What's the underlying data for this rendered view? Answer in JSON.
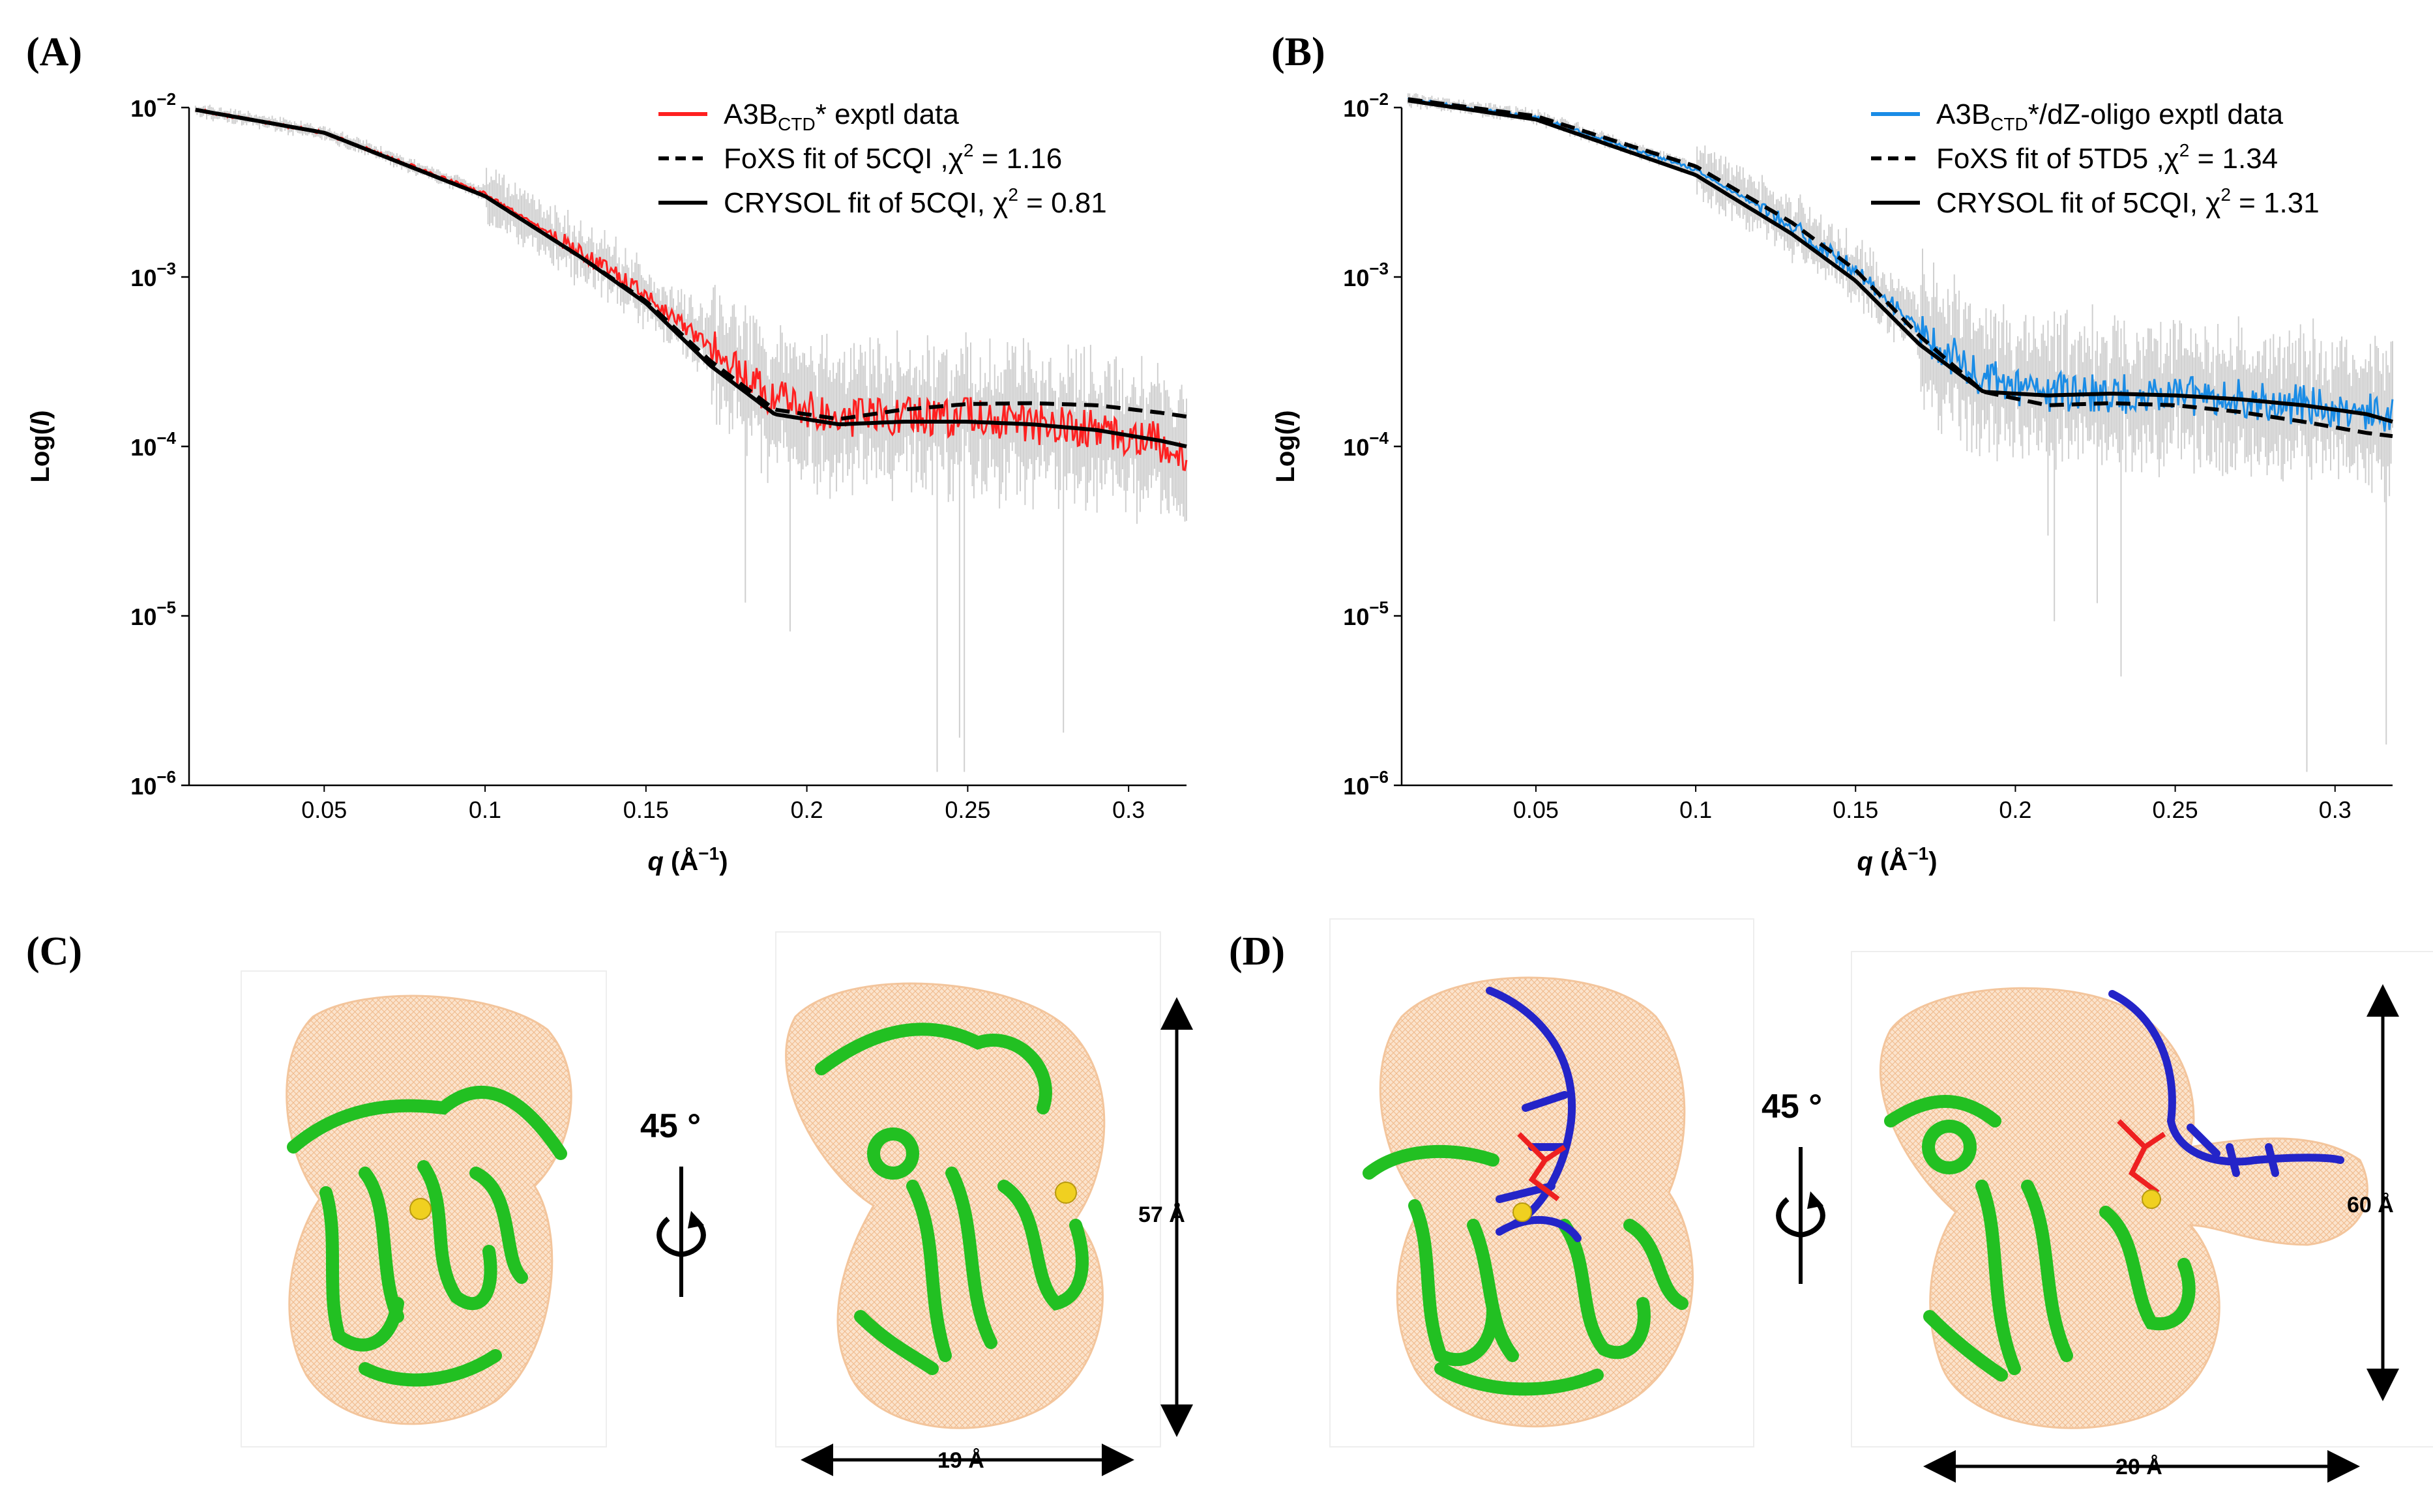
{
  "panels": {
    "A": "(A)",
    "B": "(B)",
    "C": "(C)",
    "D": "(D)"
  },
  "colors": {
    "exptl_red": "#ff2020",
    "exptl_blue": "#1a8ce6",
    "noise_gray": "#cfcfcf",
    "fit_black": "#000000",
    "envelope": "#f5c9a0",
    "protein": "#22c022",
    "dna": "#2424c8",
    "ligand": "#ee2020",
    "ion": "#f0d020"
  },
  "chart_data": [
    {
      "panel": "A",
      "type": "line",
      "xlabel": "q (Å⁻¹)",
      "xlabel_parts": [
        "q",
        " (Å",
        "−1",
        ")"
      ],
      "ylabel": "Log(I)",
      "ylabel_parts": [
        "Log(",
        "I",
        ")"
      ],
      "yscale": "log",
      "xlim": [
        0.008,
        0.318
      ],
      "ylim": [
        1e-06,
        0.01
      ],
      "xticks": [
        0.05,
        0.1,
        0.15,
        0.2,
        0.25,
        0.3
      ],
      "xtick_labels": [
        "0.05",
        "0.1",
        "0.15",
        "0.2",
        "0.25",
        "0.3"
      ],
      "yticks": [
        0.01,
        0.001,
        0.0001,
        1e-05,
        1e-06
      ],
      "ytick_base": "10",
      "ytick_exps": [
        "−2",
        "−3",
        "−4",
        "−5",
        "−6"
      ],
      "legend_position": "top-right",
      "series": [
        {
          "name": "A3BCTD* exptl data",
          "legend": {
            "pre": "A3B",
            "sub": "CTD",
            "post": "* exptl data"
          },
          "style": "exptl",
          "color": "#ff2020",
          "x": [
            0.01,
            0.05,
            0.1,
            0.13,
            0.15,
            0.17,
            0.19,
            0.21,
            0.23,
            0.25,
            0.27,
            0.29,
            0.31,
            0.318
          ],
          "values": [
            0.0097,
            0.0071,
            0.0031,
            0.0014,
            0.00078,
            0.00038,
            0.00019,
            0.000145,
            0.00015,
            0.00015,
            0.000135,
            0.000125,
            0.000105,
            9e-05
          ]
        },
        {
          "name": "FoXS fit of 5CQI ,χ2 = 1.16",
          "legend": {
            "pre": "FoXS fit of 5CQI ,χ",
            "sup": "2",
            "post": " = 1.16"
          },
          "style": "dashed",
          "color": "#000000",
          "x": [
            0.01,
            0.05,
            0.1,
            0.13,
            0.15,
            0.17,
            0.19,
            0.21,
            0.23,
            0.25,
            0.27,
            0.29,
            0.31,
            0.318
          ],
          "values": [
            0.0097,
            0.0071,
            0.003,
            0.0013,
            0.00072,
            0.00032,
            0.000165,
            0.000145,
            0.000165,
            0.000178,
            0.00018,
            0.000175,
            0.000158,
            0.00015
          ]
        },
        {
          "name": "CRYSOL fit of 5CQI, χ2 = 0.81",
          "legend": {
            "pre": "CRYSOL fit of 5CQI, χ",
            "sup": "2",
            "post": " = 0.81"
          },
          "style": "solid",
          "color": "#000000",
          "x": [
            0.01,
            0.05,
            0.1,
            0.13,
            0.15,
            0.17,
            0.19,
            0.21,
            0.23,
            0.25,
            0.27,
            0.29,
            0.31,
            0.318
          ],
          "values": [
            0.0097,
            0.0071,
            0.003,
            0.0013,
            0.0007,
            0.0003,
            0.000155,
            0.000135,
            0.00014,
            0.00014,
            0.000135,
            0.000125,
            0.000108,
            0.0001
          ]
        }
      ]
    },
    {
      "panel": "B",
      "type": "line",
      "xlabel": "q (Å⁻¹)",
      "xlabel_parts": [
        "q",
        " (Å",
        "−1",
        ")"
      ],
      "ylabel": "Log(I)",
      "ylabel_parts": [
        "Log(",
        "I",
        ")"
      ],
      "yscale": "log",
      "xlim": [
        0.008,
        0.318
      ],
      "ylim": [
        1e-06,
        0.01
      ],
      "xticks": [
        0.05,
        0.1,
        0.15,
        0.2,
        0.25,
        0.3
      ],
      "xtick_labels": [
        "0.05",
        "0.1",
        "0.15",
        "0.2",
        "0.25",
        "0.3"
      ],
      "yticks": [
        0.01,
        0.001,
        0.0001,
        1e-05,
        1e-06
      ],
      "ytick_base": "10",
      "ytick_exps": [
        "−2",
        "−3",
        "−4",
        "−5",
        "−6"
      ],
      "legend_position": "top-right",
      "series": [
        {
          "name": "A3BCTD*/dZ-oligo exptl data",
          "legend": {
            "pre": "A3B",
            "sub": "CTD",
            "post": "*/dZ-oligo exptl data"
          },
          "style": "exptl",
          "color": "#1a8ce6",
          "x": [
            0.01,
            0.05,
            0.1,
            0.13,
            0.15,
            0.17,
            0.19,
            0.21,
            0.23,
            0.25,
            0.27,
            0.29,
            0.31,
            0.318
          ],
          "values": [
            0.0112,
            0.0088,
            0.0043,
            0.002,
            0.0011,
            0.00048,
            0.00025,
            0.00021,
            0.000205,
            0.0002,
            0.00019,
            0.000175,
            0.00016,
            0.000145
          ]
        },
        {
          "name": "FoXS fit of 5TD5 ,χ2 = 1.34",
          "legend": {
            "pre": "FoXS fit of 5TD5 ,χ",
            "sup": "2",
            "post": " = 1.34"
          },
          "style": "dashed",
          "color": "#000000",
          "x": [
            0.01,
            0.05,
            0.1,
            0.13,
            0.15,
            0.17,
            0.19,
            0.21,
            0.23,
            0.25,
            0.27,
            0.29,
            0.31,
            0.318
          ],
          "values": [
            0.0112,
            0.0089,
            0.0045,
            0.0021,
            0.0011,
            0.00045,
            0.00021,
            0.000175,
            0.00018,
            0.000175,
            0.00016,
            0.00014,
            0.00012,
            0.000115
          ]
        },
        {
          "name": "CRYSOL fit of 5CQI, χ2 = 1.31",
          "legend": {
            "pre": "CRYSOL fit of 5CQI, χ",
            "sup": "2",
            "post": " = 1.31"
          },
          "style": "solid",
          "color": "#000000",
          "x": [
            0.01,
            0.05,
            0.1,
            0.13,
            0.15,
            0.17,
            0.19,
            0.21,
            0.23,
            0.25,
            0.27,
            0.29,
            0.31,
            0.318
          ],
          "values": [
            0.011,
            0.0085,
            0.004,
            0.0018,
            0.00095,
            0.0004,
            0.00021,
            0.0002,
            0.000205,
            0.0002,
            0.00019,
            0.000175,
            0.000155,
            0.00014
          ]
        }
      ]
    }
  ],
  "structures": {
    "C": {
      "rotation": "45 °",
      "height": "57 Å",
      "width": "19 Å"
    },
    "D": {
      "rotation": "45 °",
      "height": "60 Å",
      "width": "20 Å"
    }
  }
}
